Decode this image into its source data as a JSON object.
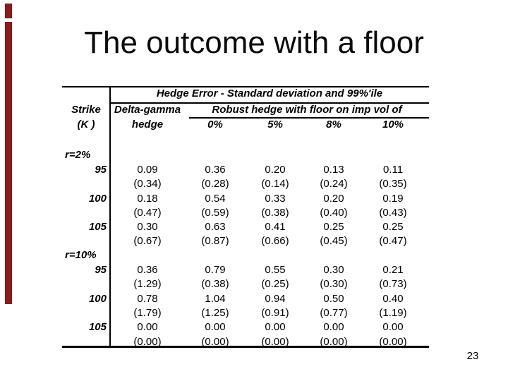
{
  "slide": {
    "title": "The outcome with a floor",
    "page_number": "23"
  },
  "colors": {
    "background": "#FFFFFF",
    "accent_bar": "#8B1A1A",
    "text": "#000000",
    "table_rule": "#000000"
  },
  "table": {
    "spanning_header": "Hedge Error - Standard deviation and 99%'ile",
    "strike_header_line1": "Strike",
    "strike_header_line2": "(K )",
    "col1_header_line1": "Delta-gamma",
    "col1_header_line2": "hedge",
    "floor_group_header": "Robust hedge with floor on imp vol of",
    "floor_levels": [
      "0%",
      "5%",
      "8%",
      "10%"
    ],
    "sections": [
      {
        "label": "r=2%",
        "rows": [
          {
            "strike": "95",
            "values": [
              "0.09",
              "0.36",
              "0.20",
              "0.13",
              "0.11"
            ],
            "ci": [
              "(0.34)",
              "(0.28)",
              "(0.14)",
              "(0.24)",
              "(0.35)"
            ]
          },
          {
            "strike": "100",
            "values": [
              "0.18",
              "0.54",
              "0.33",
              "0.20",
              "0.19"
            ],
            "ci": [
              "(0.47)",
              "(0.59)",
              "(0.38)",
              "(0.40)",
              "(0.43)"
            ]
          },
          {
            "strike": "105",
            "values": [
              "0.30",
              "0.63",
              "0.41",
              "0.25",
              "0.25"
            ],
            "ci": [
              "(0.67)",
              "(0.87)",
              "(0.66)",
              "(0.45)",
              "(0.47)"
            ]
          }
        ]
      },
      {
        "label": "r=10%",
        "rows": [
          {
            "strike": "95",
            "values": [
              "0.36",
              "0.79",
              "0.55",
              "0.30",
              "0.21"
            ],
            "ci": [
              "(1.29)",
              "(0.38)",
              "(0.25)",
              "(0.30)",
              "(0.73)"
            ]
          },
          {
            "strike": "100",
            "values": [
              "0.78",
              "1.04",
              "0.94",
              "0.50",
              "0.40"
            ],
            "ci": [
              "(1.79)",
              "(1.25)",
              "(0.91)",
              "(0.77)",
              "(1.19)"
            ]
          },
          {
            "strike": "105",
            "values": [
              "0.00",
              "0.00",
              "0.00",
              "0.00",
              "0.00"
            ],
            "ci": [
              "(0.00)",
              "(0.00)",
              "(0.00)",
              "(0.00)",
              "(0.00)"
            ]
          }
        ]
      }
    ]
  }
}
